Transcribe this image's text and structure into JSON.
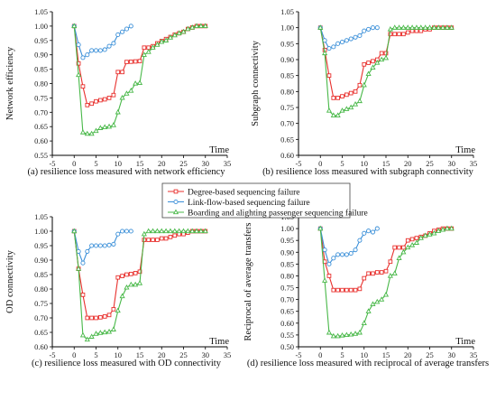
{
  "chart_data": [
    {
      "type": "line",
      "caption": "(a) resilience loss measured with network efficiency",
      "ylabel": "Network efficiency",
      "xlabel": "Time",
      "xlim": [
        -5,
        35
      ],
      "ylim": [
        0.55,
        1.05
      ],
      "xticks": [
        "-5",
        "0",
        "5",
        "10",
        "15",
        "20",
        "25",
        "30",
        "35"
      ],
      "yticks": [
        "0.55",
        "0.60",
        "0.65",
        "0.70",
        "0.75",
        "0.80",
        "0.85",
        "0.90",
        "0.95",
        "1.00",
        "1.05"
      ],
      "series": [
        {
          "name": "Degree-based sequencing failure",
          "color": "#e8302d",
          "marker": "square",
          "x": [
            0,
            1,
            2,
            3,
            4,
            5,
            6,
            7,
            8,
            9,
            10,
            11,
            12,
            13,
            14,
            15,
            16,
            17,
            18,
            19,
            20,
            21,
            22,
            23,
            24,
            25,
            26,
            27,
            28,
            29,
            30
          ],
          "y": [
            1.0,
            0.87,
            0.79,
            0.725,
            0.73,
            0.738,
            0.742,
            0.745,
            0.75,
            0.76,
            0.84,
            0.84,
            0.875,
            0.876,
            0.877,
            0.878,
            0.925,
            0.925,
            0.93,
            0.94,
            0.948,
            0.955,
            0.962,
            0.97,
            0.975,
            0.98,
            0.99,
            0.995,
            1.0,
            1.0,
            1.0
          ]
        },
        {
          "name": "Link-flow-based sequencing failure",
          "color": "#3a8fd8",
          "marker": "circle",
          "x": [
            0,
            1,
            2,
            3,
            4,
            5,
            6,
            7,
            8,
            9,
            10,
            11,
            12,
            13
          ],
          "y": [
            1.0,
            0.935,
            0.89,
            0.9,
            0.915,
            0.915,
            0.915,
            0.918,
            0.93,
            0.94,
            0.97,
            0.98,
            0.99,
            1.0
          ]
        },
        {
          "name": "Boarding and alighting passenger sequencing failure",
          "color": "#48b848",
          "marker": "triangle",
          "x": [
            0,
            1,
            2,
            3,
            4,
            5,
            6,
            7,
            8,
            9,
            10,
            11,
            12,
            13,
            14,
            15,
            16,
            17,
            18,
            19,
            20,
            21,
            22,
            23,
            24,
            25,
            26,
            27,
            28,
            29,
            30
          ],
          "y": [
            1.0,
            0.83,
            0.63,
            0.625,
            0.625,
            0.635,
            0.645,
            0.648,
            0.65,
            0.655,
            0.7,
            0.75,
            0.765,
            0.775,
            0.8,
            0.802,
            0.9,
            0.91,
            0.925,
            0.935,
            0.945,
            0.95,
            0.96,
            0.968,
            0.975,
            0.98,
            0.99,
            0.995,
            1.0,
            1.0,
            1.0
          ]
        }
      ]
    },
    {
      "type": "line",
      "caption": "(b) resilience loss measured with subgraph connectivity",
      "ylabel": "Subgraph connectivity",
      "xlabel": "Time",
      "xlim": [
        -5,
        35
      ],
      "ylim": [
        0.6,
        1.05
      ],
      "xticks": [
        "-5",
        "0",
        "5",
        "10",
        "15",
        "20",
        "25",
        "30",
        "35"
      ],
      "yticks": [
        "0.60",
        "0.65",
        "0.70",
        "0.75",
        "0.80",
        "0.85",
        "0.90",
        "0.95",
        "1.00",
        "1.05"
      ],
      "series": [
        {
          "name": "Degree-based sequencing failure",
          "color": "#e8302d",
          "marker": "square",
          "x": [
            0,
            1,
            2,
            3,
            4,
            5,
            6,
            7,
            8,
            9,
            10,
            11,
            12,
            13,
            14,
            15,
            16,
            17,
            18,
            19,
            20,
            21,
            22,
            23,
            24,
            25,
            26,
            27,
            28,
            29,
            30
          ],
          "y": [
            1.0,
            0.93,
            0.85,
            0.78,
            0.78,
            0.785,
            0.79,
            0.795,
            0.8,
            0.82,
            0.885,
            0.89,
            0.895,
            0.9,
            0.92,
            0.92,
            0.98,
            0.98,
            0.98,
            0.98,
            0.985,
            0.99,
            0.99,
            0.99,
            0.995,
            0.995,
            1.0,
            1.0,
            1.0,
            1.0,
            1.0
          ]
        },
        {
          "name": "Link-flow-based sequencing failure",
          "color": "#3a8fd8",
          "marker": "circle",
          "x": [
            0,
            1,
            2,
            3,
            4,
            5,
            6,
            7,
            8,
            9,
            10,
            11,
            12,
            13
          ],
          "y": [
            1.0,
            0.96,
            0.935,
            0.94,
            0.95,
            0.955,
            0.96,
            0.965,
            0.97,
            0.975,
            0.99,
            0.995,
            1.0,
            1.0
          ]
        },
        {
          "name": "Boarding and alighting passenger sequencing failure",
          "color": "#48b848",
          "marker": "triangle",
          "x": [
            0,
            1,
            2,
            3,
            4,
            5,
            6,
            7,
            8,
            9,
            10,
            11,
            12,
            13,
            14,
            15,
            16,
            17,
            18,
            19,
            20,
            21,
            22,
            23,
            24,
            25,
            26,
            27,
            28,
            29,
            30
          ],
          "y": [
            1.0,
            0.92,
            0.74,
            0.725,
            0.725,
            0.74,
            0.745,
            0.75,
            0.76,
            0.77,
            0.82,
            0.855,
            0.875,
            0.89,
            0.9,
            0.905,
            0.995,
            1.0,
            1.0,
            1.0,
            1.0,
            1.0,
            1.0,
            1.0,
            1.0,
            1.0,
            1.0,
            1.0,
            1.0,
            1.0,
            1.0
          ]
        }
      ]
    },
    {
      "type": "line",
      "caption": "(c) resilience loss measured with OD connectivity",
      "ylabel": "OD connectivity",
      "xlabel": "Time",
      "xlim": [
        -5,
        35
      ],
      "ylim": [
        0.6,
        1.05
      ],
      "xticks": [
        "-5",
        "0",
        "5",
        "10",
        "15",
        "20",
        "25",
        "30",
        "35"
      ],
      "yticks": [
        "0.60",
        "0.65",
        "0.70",
        "0.75",
        "0.80",
        "0.85",
        "0.90",
        "0.95",
        "1.00",
        "1.05"
      ],
      "series": [
        {
          "name": "Degree-based sequencing failure",
          "color": "#e8302d",
          "marker": "square",
          "x": [
            0,
            1,
            2,
            3,
            4,
            5,
            6,
            7,
            8,
            9,
            10,
            11,
            12,
            13,
            14,
            15,
            16,
            17,
            18,
            19,
            20,
            21,
            22,
            23,
            24,
            25,
            26,
            27,
            28,
            29,
            30
          ],
          "y": [
            1.0,
            0.87,
            0.78,
            0.7,
            0.7,
            0.7,
            0.702,
            0.705,
            0.71,
            0.73,
            0.84,
            0.845,
            0.85,
            0.852,
            0.855,
            0.86,
            0.97,
            0.97,
            0.97,
            0.97,
            0.975,
            0.975,
            0.98,
            0.985,
            0.99,
            0.99,
            0.995,
            1.0,
            1.0,
            1.0,
            1.0
          ]
        },
        {
          "name": "Link-flow-based sequencing failure",
          "color": "#3a8fd8",
          "marker": "circle",
          "x": [
            0,
            1,
            2,
            3,
            4,
            5,
            6,
            7,
            8,
            9,
            10,
            11,
            12,
            13
          ],
          "y": [
            1.0,
            0.93,
            0.89,
            0.93,
            0.95,
            0.95,
            0.95,
            0.95,
            0.952,
            0.955,
            0.99,
            1.0,
            1.0,
            1.0
          ]
        },
        {
          "name": "Boarding and alighting passenger sequencing failure",
          "color": "#48b848",
          "marker": "triangle",
          "x": [
            0,
            1,
            2,
            3,
            4,
            5,
            6,
            7,
            8,
            9,
            10,
            11,
            12,
            13,
            14,
            15,
            16,
            17,
            18,
            19,
            20,
            21,
            22,
            23,
            24,
            25,
            26,
            27,
            28,
            29,
            30
          ],
          "y": [
            1.0,
            0.87,
            0.64,
            0.625,
            0.635,
            0.645,
            0.648,
            0.65,
            0.652,
            0.66,
            0.725,
            0.775,
            0.805,
            0.815,
            0.815,
            0.82,
            0.99,
            1.0,
            1.0,
            1.0,
            1.0,
            1.0,
            1.0,
            1.0,
            1.0,
            1.0,
            1.0,
            1.0,
            1.0,
            1.0,
            1.0
          ]
        }
      ]
    },
    {
      "type": "line",
      "caption": "(d) resilience loss measured with reciprocal of average transfers",
      "ylabel": "Reciprocal of average transfers",
      "xlabel": "Time",
      "xlim": [
        -5,
        35
      ],
      "ylim": [
        0.5,
        1.05
      ],
      "xticks": [
        "-5",
        "0",
        "5",
        "10",
        "15",
        "20",
        "25",
        "30",
        "35"
      ],
      "yticks": [
        "0.50",
        "0.55",
        "0.60",
        "0.65",
        "0.70",
        "0.75",
        "0.80",
        "0.85",
        "0.90",
        "0.95",
        "1.00",
        "1.05"
      ],
      "series": [
        {
          "name": "Degree-based sequencing failure",
          "color": "#e8302d",
          "marker": "square",
          "x": [
            0,
            1,
            2,
            3,
            4,
            5,
            6,
            7,
            8,
            9,
            10,
            11,
            12,
            13,
            14,
            15,
            16,
            17,
            18,
            19,
            20,
            21,
            22,
            23,
            24,
            25,
            26,
            27,
            28,
            29,
            30
          ],
          "y": [
            1.0,
            0.86,
            0.8,
            0.74,
            0.74,
            0.74,
            0.74,
            0.74,
            0.74,
            0.745,
            0.79,
            0.81,
            0.81,
            0.815,
            0.815,
            0.82,
            0.86,
            0.92,
            0.92,
            0.92,
            0.95,
            0.955,
            0.96,
            0.965,
            0.97,
            0.98,
            0.99,
            0.995,
            1.0,
            1.0,
            1.0
          ]
        },
        {
          "name": "Link-flow-based sequencing failure",
          "color": "#3a8fd8",
          "marker": "circle",
          "x": [
            0,
            1,
            2,
            3,
            4,
            5,
            6,
            7,
            8,
            9,
            10,
            11,
            12,
            13
          ],
          "y": [
            1.0,
            0.91,
            0.85,
            0.875,
            0.89,
            0.89,
            0.89,
            0.895,
            0.91,
            0.95,
            0.98,
            0.99,
            0.985,
            1.0
          ]
        },
        {
          "name": "Boarding and alighting passenger sequencing failure",
          "color": "#48b848",
          "marker": "triangle",
          "x": [
            0,
            1,
            2,
            3,
            4,
            5,
            6,
            7,
            8,
            9,
            10,
            11,
            12,
            13,
            14,
            15,
            16,
            17,
            18,
            19,
            20,
            21,
            22,
            23,
            24,
            25,
            26,
            27,
            28,
            29,
            30
          ],
          "y": [
            1.0,
            0.78,
            0.56,
            0.545,
            0.545,
            0.548,
            0.55,
            0.552,
            0.555,
            0.56,
            0.6,
            0.65,
            0.68,
            0.69,
            0.7,
            0.72,
            0.8,
            0.81,
            0.875,
            0.9,
            0.92,
            0.93,
            0.94,
            0.96,
            0.97,
            0.975,
            0.98,
            0.99,
            0.995,
            1.0,
            1.0
          ]
        }
      ]
    }
  ],
  "legend": [
    {
      "label": "Degree-based sequencing failure",
      "color": "#e8302d",
      "marker": "square"
    },
    {
      "label": "Link-flow-based sequencing failure",
      "color": "#3a8fd8",
      "marker": "circle"
    },
    {
      "label": "Boarding and alighting passenger sequencing failure",
      "color": "#48b848",
      "marker": "triangle"
    }
  ]
}
